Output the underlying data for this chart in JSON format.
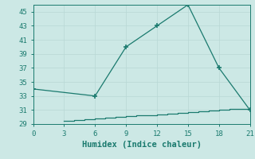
{
  "xlabel": "Humidex (Indice chaleur)",
  "line1_x": [
    0,
    6,
    9,
    12,
    15,
    18,
    21
  ],
  "line1_y": [
    34,
    33,
    40,
    43,
    46,
    37,
    31
  ],
  "line2_x": [
    3,
    4,
    5,
    6,
    7,
    8,
    9,
    10,
    11,
    12,
    13,
    14,
    15,
    16,
    17,
    18,
    19,
    20,
    21
  ],
  "line2_y": [
    29.5,
    29.6,
    29.7,
    29.8,
    29.9,
    30.0,
    30.1,
    30.2,
    30.3,
    30.4,
    30.5,
    30.6,
    30.7,
    30.8,
    30.9,
    31.0,
    31.1,
    31.2,
    31.3
  ],
  "line_color": "#1a7a6e",
  "bg_color": "#cce8e5",
  "grid_color": "#b8d8d5",
  "xlim": [
    0,
    21
  ],
  "ylim": [
    29,
    46
  ],
  "xticks": [
    0,
    3,
    6,
    9,
    12,
    15,
    18,
    21
  ],
  "yticks": [
    29,
    31,
    33,
    35,
    37,
    39,
    41,
    43,
    45
  ],
  "tick_fontsize": 6.5,
  "xlabel_fontsize": 7.5
}
